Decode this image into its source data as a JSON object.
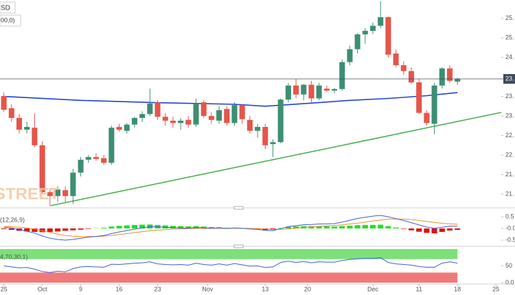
{
  "header": {
    "symbol": "SD",
    "indicator": "00,0)",
    "watermark": "STREET"
  },
  "chart_data": [
    {
      "type": "candlestick",
      "x": [
        0,
        1,
        2,
        3,
        4,
        5,
        6,
        7,
        8,
        9,
        10,
        11,
        12,
        13,
        14,
        15,
        16,
        17,
        18,
        19,
        20,
        21,
        22,
        23,
        24,
        25,
        26,
        27,
        28,
        29,
        30,
        31,
        32,
        33,
        34,
        35,
        36,
        37,
        38,
        39,
        40,
        41,
        42,
        43,
        44,
        45,
        46,
        47,
        48,
        49,
        50,
        51,
        52,
        53,
        54,
        55,
        56,
        57,
        58,
        59
      ],
      "open": [
        23.51,
        23.2,
        22.95,
        22.65,
        22.7,
        22.25,
        21.05,
        20.95,
        21.1,
        20.95,
        21.55,
        21.88,
        21.95,
        21.92,
        21.8,
        22.72,
        22.62,
        22.78,
        22.95,
        23.05,
        23.35,
        22.98,
        22.88,
        22.82,
        22.9,
        22.78,
        23.35,
        23.0,
        22.88,
        23.18,
        22.82,
        23.28,
        22.9,
        22.62,
        22.72,
        22.28,
        22.33,
        23.42,
        23.78,
        23.55,
        23.8,
        23.45,
        23.7,
        23.65,
        23.69,
        24.38,
        24.71,
        25.09,
        25.18,
        25.31,
        25.53,
        24.6,
        24.3,
        24.15,
        23.86,
        23.08,
        22.8,
        23.78,
        24.22,
        23.88
      ],
      "high": [
        23.6,
        23.3,
        23.05,
        22.85,
        23.07,
        22.35,
        21.15,
        21.2,
        21.2,
        21.65,
        21.95,
        22.0,
        22.05,
        22.0,
        22.75,
        22.8,
        22.82,
        22.98,
        23.12,
        23.7,
        23.4,
        23.08,
        22.98,
        22.95,
        23.0,
        23.45,
        23.4,
        23.1,
        23.25,
        23.25,
        23.35,
        23.3,
        23.0,
        22.8,
        22.8,
        22.4,
        23.45,
        23.85,
        23.95,
        23.82,
        23.9,
        23.85,
        23.78,
        23.72,
        24.45,
        24.8,
        25.12,
        25.25,
        25.4,
        25.94,
        25.55,
        24.7,
        24.4,
        24.25,
        23.95,
        23.15,
        23.85,
        24.25,
        24.3,
        23.98
      ],
      "low": [
        23.1,
        22.85,
        22.55,
        22.55,
        22.2,
        21.0,
        20.72,
        20.8,
        20.8,
        20.75,
        21.45,
        21.8,
        21.85,
        21.75,
        21.75,
        22.6,
        22.55,
        22.7,
        22.85,
        23.0,
        22.9,
        22.75,
        22.7,
        22.65,
        22.7,
        22.72,
        22.95,
        22.8,
        22.8,
        22.75,
        22.75,
        22.8,
        22.55,
        22.45,
        22.15,
        21.95,
        22.3,
        23.35,
        23.45,
        23.4,
        23.35,
        23.4,
        23.62,
        23.58,
        23.65,
        24.3,
        24.6,
        24.85,
        25.1,
        25.25,
        24.5,
        24.25,
        24.05,
        23.82,
        23.05,
        22.75,
        22.53,
        23.7,
        23.85,
        23.8
      ],
      "close": [
        23.16,
        22.95,
        22.65,
        22.72,
        22.25,
        21.05,
        20.95,
        21.12,
        20.95,
        21.55,
        21.88,
        21.95,
        21.9,
        21.8,
        22.7,
        22.65,
        22.78,
        22.95,
        23.05,
        23.32,
        22.98,
        22.88,
        22.82,
        22.88,
        22.78,
        23.32,
        23.0,
        22.9,
        23.15,
        22.82,
        23.28,
        22.92,
        22.62,
        22.72,
        22.25,
        22.33,
        23.42,
        23.78,
        23.55,
        23.8,
        23.45,
        23.78,
        23.65,
        23.69,
        24.38,
        24.71,
        25.09,
        25.18,
        25.31,
        25.53,
        24.57,
        24.3,
        24.15,
        23.86,
        23.08,
        22.82,
        23.78,
        24.22,
        23.9,
        23.95
      ],
      "up_color": "#3d8f72",
      "down_color": "#e5554a",
      "lines": [
        {
          "color": "#1f3fd6",
          "x": [
            0,
            10,
            20,
            30,
            34,
            40,
            45,
            50,
            55,
            59
          ],
          "values": [
            23.5,
            23.4,
            23.34,
            23.3,
            23.25,
            23.33,
            23.4,
            23.45,
            23.52,
            23.6
          ]
        },
        {
          "color": "#4caf50",
          "x": [
            6,
            64.7
          ],
          "values": [
            20.7,
            23.09
          ]
        }
      ],
      "price_label": "23.",
      "price_color": "#3d4b5c",
      "xlim": [
        -0.5,
        64.7
      ],
      "ylim": [
        20.7,
        25.97
      ],
      "yticks": [
        {
          "value": 21.0,
          "label": "21."
        },
        {
          "value": 21.5,
          "label": "21."
        },
        {
          "value": 22.0,
          "label": "22."
        },
        {
          "value": 22.5,
          "label": "22."
        },
        {
          "value": 23.0,
          "label": "23."
        },
        {
          "value": 23.5,
          "label": "23."
        },
        {
          "value": 24.5,
          "label": "24."
        },
        {
          "value": 25.0,
          "label": "25."
        },
        {
          "value": 25.5,
          "label": "25."
        }
      ]
    },
    {
      "type": "macd",
      "label": "(12,26,9)",
      "histogram": [
        -0.03,
        -0.06,
        -0.1,
        -0.13,
        -0.15,
        -0.16,
        -0.15,
        -0.13,
        -0.1,
        -0.08,
        -0.05,
        -0.02,
        0.01,
        0.03,
        0.08,
        0.11,
        0.13,
        0.15,
        0.16,
        0.17,
        0.15,
        0.13,
        0.11,
        0.1,
        0.09,
        0.1,
        0.08,
        0.06,
        0.05,
        0.03,
        0.02,
        0.01,
        -0.02,
        -0.04,
        -0.07,
        -0.06,
        0.02,
        0.07,
        0.09,
        0.1,
        0.1,
        0.1,
        0.09,
        0.08,
        0.1,
        0.12,
        0.14,
        0.15,
        0.15,
        0.16,
        0.1,
        0.04,
        -0.02,
        -0.08,
        -0.14,
        -0.19,
        -0.21,
        -0.15,
        -0.09,
        -0.06
      ],
      "macd": [
        0.05,
        0.02,
        -0.05,
        -0.12,
        -0.2,
        -0.32,
        -0.42,
        -0.47,
        -0.5,
        -0.47,
        -0.42,
        -0.37,
        -0.34,
        -0.3,
        -0.22,
        -0.15,
        -0.09,
        -0.03,
        0.02,
        0.08,
        0.07,
        0.05,
        0.03,
        0.02,
        0.01,
        0.04,
        0.03,
        0.01,
        0.02,
        0,
        0.02,
        0.01,
        -0.02,
        -0.04,
        -0.08,
        -0.1,
        -0.01,
        0.08,
        0.12,
        0.16,
        0.17,
        0.19,
        0.2,
        0.21,
        0.27,
        0.35,
        0.43,
        0.48,
        0.53,
        0.56,
        0.5,
        0.42,
        0.34,
        0.25,
        0.15,
        0.06,
        0.01,
        0.05,
        0.1,
        0.1
      ],
      "signal": [
        0.08,
        0.07,
        0.05,
        0.02,
        -0.03,
        -0.1,
        -0.17,
        -0.24,
        -0.3,
        -0.33,
        -0.35,
        -0.35,
        -0.34,
        -0.33,
        -0.3,
        -0.26,
        -0.22,
        -0.18,
        -0.14,
        -0.1,
        -0.07,
        -0.05,
        -0.03,
        -0.02,
        -0.01,
        0,
        0,
        0.01,
        0.01,
        0.01,
        0.01,
        0.01,
        0,
        -0.01,
        -0.02,
        -0.04,
        -0.04,
        -0.02,
        0.01,
        0.04,
        0.07,
        0.09,
        0.11,
        0.13,
        0.15,
        0.19,
        0.23,
        0.27,
        0.32,
        0.36,
        0.4,
        0.41,
        0.4,
        0.38,
        0.34,
        0.3,
        0.26,
        0.22,
        0.2,
        0.18
      ],
      "up_color": "#22e022",
      "down_color": "#e01010",
      "macd_color": "#3b5bdb",
      "signal_color": "#f08a24",
      "ylim": [
        -0.706,
        0.735
      ],
      "yticks": [
        0.5,
        {
          "value": 0,
          "label": "-0.0"
        },
        -0.5
      ]
    },
    {
      "type": "rsi",
      "label": "4,70,30,1)",
      "values": [
        50,
        47,
        44,
        45,
        40,
        33,
        30,
        34,
        32,
        42,
        47,
        48,
        47,
        46,
        55,
        54,
        56,
        58,
        59,
        62,
        56,
        54,
        53,
        54,
        52,
        58,
        54,
        52,
        56,
        52,
        57,
        53,
        49,
        50,
        45,
        47,
        60,
        64,
        60,
        63,
        59,
        62,
        61,
        61,
        66,
        69,
        71,
        72,
        72,
        74,
        60,
        56,
        54,
        52,
        48,
        46,
        46,
        58,
        62,
        58
      ],
      "color": "#3b5bdb",
      "bands": [
        {
          "range": [
            70,
            100
          ],
          "color": "#7de07a"
        },
        {
          "range": [
            0,
            30
          ],
          "color": "#f07a7a"
        }
      ],
      "ylim": [
        0,
        100
      ],
      "yticks": [
        50,
        {
          "value": 0,
          "label": "0.0"
        }
      ],
      "xticks": [
        {
          "value": 0,
          "label": "25"
        },
        {
          "value": 5,
          "label": "Oct"
        },
        {
          "value": 10,
          "label": "9"
        },
        {
          "value": 15,
          "label": "16"
        },
        {
          "value": 20,
          "label": "23"
        },
        {
          "value": 26.5,
          "label": "Nov"
        },
        {
          "value": 34,
          "label": "13"
        },
        {
          "value": 39.5,
          "label": "20"
        },
        {
          "value": 48,
          "label": "Dec"
        },
        {
          "value": 54,
          "label": "11"
        },
        {
          "value": 59,
          "label": "18"
        },
        {
          "value": 64,
          "label": "25"
        }
      ]
    }
  ]
}
